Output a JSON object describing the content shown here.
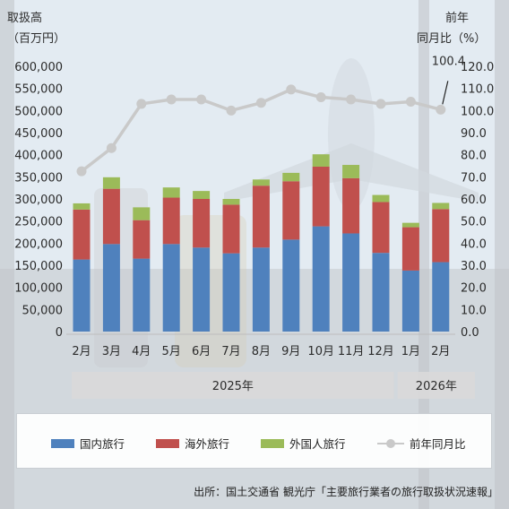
{
  "chart_data": {
    "type": "bar",
    "stacked": true,
    "ylabel_left": [
      "取扱高",
      "（百万円）"
    ],
    "ylabel_right": [
      "前年",
      "同月比（%）"
    ],
    "categories": [
      "2月",
      "3月",
      "4月",
      "5月",
      "6月",
      "7月",
      "8月",
      "9月",
      "10月",
      "11月",
      "12月",
      "1月",
      "2月"
    ],
    "year_groups": [
      {
        "label": "2025年",
        "count": 11
      },
      {
        "label": "2026年",
        "count": 2
      }
    ],
    "left_axis": {
      "ylim": [
        0,
        600000
      ],
      "ticks": [
        "0",
        "50,000",
        "100,000",
        "150,000",
        "200,000",
        "250,000",
        "300,000",
        "350,000",
        "400,000",
        "450,000",
        "500,000",
        "550,000",
        "600,000"
      ]
    },
    "right_axis": {
      "ylim": [
        0,
        120
      ],
      "ticks": [
        "0.0",
        "10.0",
        "20.0",
        "30.0",
        "40.0",
        "50.0",
        "60.0",
        "70.0",
        "80.0",
        "90.0",
        "100.0",
        "110.0",
        "120.0"
      ]
    },
    "series": [
      {
        "name": "国内旅行",
        "color": "#4f81bd",
        "values": [
          163000,
          198000,
          165000,
          198000,
          190000,
          177000,
          190000,
          208000,
          238000,
          222000,
          178000,
          138000,
          157000
        ]
      },
      {
        "name": "海外旅行",
        "color": "#c0504d",
        "values": [
          113000,
          125000,
          87000,
          105000,
          110000,
          110000,
          140000,
          132000,
          135000,
          125000,
          115000,
          98000,
          120000
        ]
      },
      {
        "name": "外国人旅行",
        "color": "#9bbb59",
        "values": [
          14000,
          26000,
          29000,
          23000,
          18000,
          13000,
          14000,
          19000,
          28000,
          30000,
          16000,
          10000,
          14000
        ]
      }
    ],
    "line_series": {
      "name": "前年同月比",
      "color": "#c9c9c9",
      "values": [
        72.5,
        83,
        103,
        105,
        105,
        100,
        103.5,
        109.5,
        106,
        105,
        103,
        104,
        100.4
      ],
      "annotation": "100.4"
    }
  },
  "source_text": "出所：国土交通省 観光庁「主要旅行業者の旅行取扱状況速報」"
}
